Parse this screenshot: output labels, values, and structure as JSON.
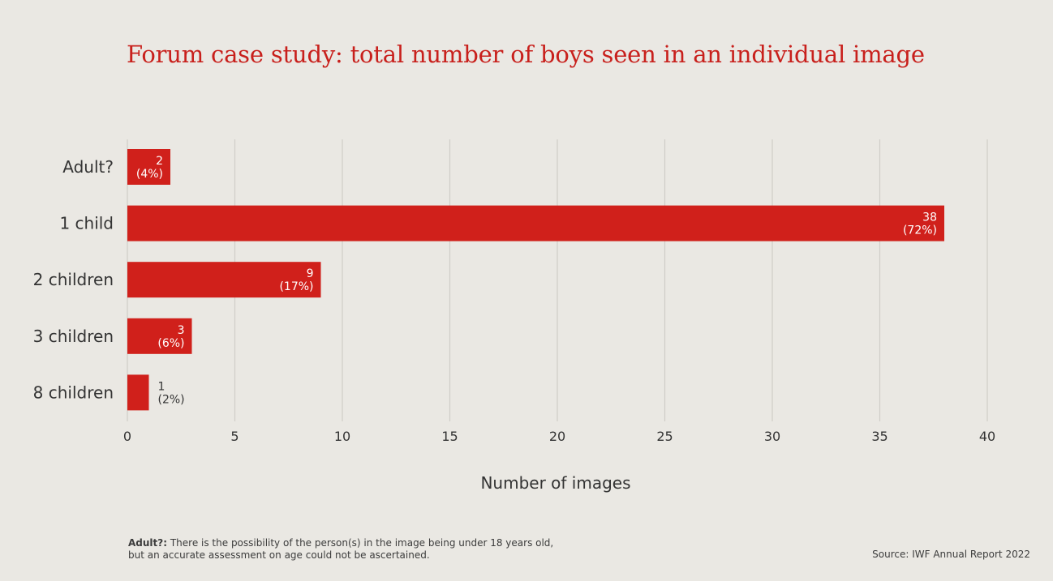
{
  "title": "Forum case study: total number of boys seen in an individual image",
  "chart_data": {
    "type": "bar",
    "orientation": "horizontal",
    "categories": [
      "Adult?",
      "1 child",
      "2 children",
      "3 children",
      "8 children"
    ],
    "values": [
      2,
      38,
      9,
      3,
      1
    ],
    "percent_labels": [
      "(4%)",
      "(72%)",
      "(17%)",
      "(6%)",
      "(2%)"
    ],
    "xlabel": "Number of images",
    "ylabel": "",
    "xlim": [
      0,
      40
    ],
    "xticks": [
      0,
      5,
      10,
      15,
      20,
      25,
      30,
      35,
      40
    ],
    "grid": true,
    "bar_color": "#d0201b"
  },
  "footnote": {
    "term": "Adult?:",
    "line1": " There is the possibility of the person(s) in the image being under 18 years old,",
    "line2": "but an accurate assessment on age could not be ascertained."
  },
  "source": "Source: IWF Annual Report 2022"
}
